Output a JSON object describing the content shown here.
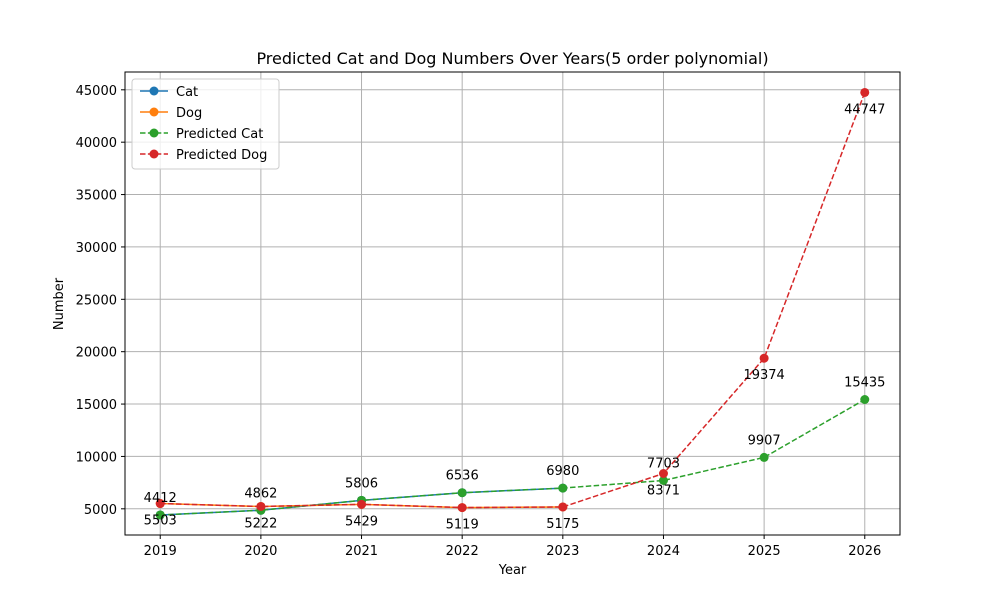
{
  "chart_data": {
    "type": "line",
    "title": "Predicted Cat and Dog Numbers Over Years(5 order polynomial)",
    "xlabel": "Year",
    "ylabel": "Number",
    "x": [
      2019,
      2020,
      2021,
      2022,
      2023,
      2024,
      2025,
      2026
    ],
    "xlim": [
      2018.65,
      2026.35
    ],
    "ylim": [
      2500,
      46700
    ],
    "yticks": [
      5000,
      10000,
      15000,
      20000,
      25000,
      30000,
      35000,
      40000,
      45000
    ],
    "grid": true,
    "legend_position": "top-left",
    "series": [
      {
        "name": "Cat",
        "x": [
          2019,
          2020,
          2021,
          2022,
          2023
        ],
        "values": [
          4412,
          4862,
          5806,
          6536,
          6980
        ],
        "color": "#1f77b4",
        "style": "solid"
      },
      {
        "name": "Dog",
        "x": [
          2019,
          2020,
          2021,
          2022,
          2023
        ],
        "values": [
          5503,
          5222,
          5429,
          5119,
          5175
        ],
        "color": "#ff7f0e",
        "style": "solid"
      },
      {
        "name": "Predicted Cat",
        "x": [
          2019,
          2020,
          2021,
          2022,
          2023,
          2024,
          2025,
          2026
        ],
        "values": [
          4412,
          4862,
          5806,
          6536,
          6980,
          7703,
          9907,
          15435
        ],
        "color": "#2ca02c",
        "style": "dashed"
      },
      {
        "name": "Predicted Dog",
        "x": [
          2019,
          2020,
          2021,
          2022,
          2023,
          2024,
          2025,
          2026
        ],
        "values": [
          5503,
          5222,
          5429,
          5119,
          5175,
          8371,
          19374,
          44747
        ],
        "color": "#d62728",
        "style": "dashed"
      }
    ],
    "annotations": [
      {
        "text": "4412",
        "x": 2019,
        "y": 4412,
        "placement": "above"
      },
      {
        "text": "4862",
        "x": 2020,
        "y": 4862,
        "placement": "above"
      },
      {
        "text": "5806",
        "x": 2021,
        "y": 5806,
        "placement": "above"
      },
      {
        "text": "6536",
        "x": 2022,
        "y": 6536,
        "placement": "above"
      },
      {
        "text": "6980",
        "x": 2023,
        "y": 6980,
        "placement": "above"
      },
      {
        "text": "7703",
        "x": 2024,
        "y": 7703,
        "placement": "above"
      },
      {
        "text": "9907",
        "x": 2025,
        "y": 9907,
        "placement": "above"
      },
      {
        "text": "15435",
        "x": 2026,
        "y": 15435,
        "placement": "above"
      },
      {
        "text": "5503",
        "x": 2019,
        "y": 5503,
        "placement": "below"
      },
      {
        "text": "5222",
        "x": 2020,
        "y": 5222,
        "placement": "below"
      },
      {
        "text": "5429",
        "x": 2021,
        "y": 5429,
        "placement": "below"
      },
      {
        "text": "5119",
        "x": 2022,
        "y": 5119,
        "placement": "below"
      },
      {
        "text": "5175",
        "x": 2023,
        "y": 5175,
        "placement": "below"
      },
      {
        "text": "8371",
        "x": 2024,
        "y": 8371,
        "placement": "below"
      },
      {
        "text": "19374",
        "x": 2025,
        "y": 19374,
        "placement": "below"
      },
      {
        "text": "44747",
        "x": 2026,
        "y": 44747,
        "placement": "below"
      }
    ]
  }
}
